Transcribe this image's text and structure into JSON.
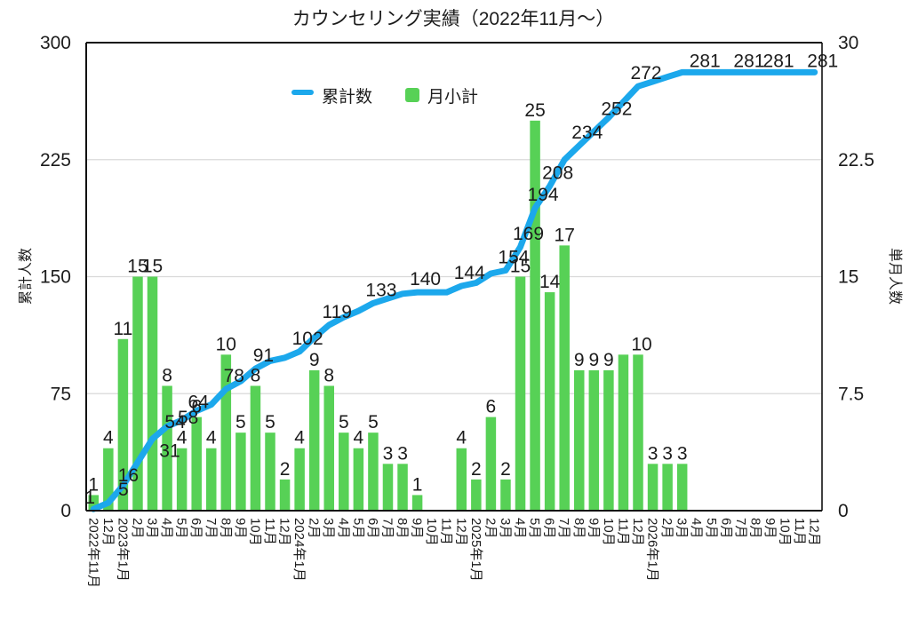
{
  "title": "カウンセリング実績（2022年11月〜）",
  "legend": {
    "line_label": "累計数",
    "bar_label": "月小計"
  },
  "colors": {
    "line": "#1ca8ec",
    "bar": "#57d156",
    "grid": "#d9d9d9",
    "axis": "#111111",
    "text": "#1c1c1c"
  },
  "chart_data": {
    "type": "combo-line-bar",
    "title": "カウンセリング実績（2022年11月〜）",
    "categories": [
      "2022年11月",
      "12月",
      "2023年1月",
      "2月",
      "3月",
      "4月",
      "5月",
      "6月",
      "7月",
      "8月",
      "9月",
      "10月",
      "11月",
      "12月",
      "2024年1月",
      "2月",
      "3月",
      "4月",
      "5月",
      "6月",
      "7月",
      "8月",
      "9月",
      "10月",
      "11月",
      "12月",
      "2025年1月",
      "2月",
      "3月",
      "4月",
      "5月",
      "6月",
      "7月",
      "8月",
      "9月",
      "10月",
      "11月",
      "12月",
      "2026年1月",
      "2月",
      "3月",
      "4月",
      "5月",
      "6月",
      "7月",
      "8月",
      "9月",
      "10月",
      "11月",
      "12月"
    ],
    "series": [
      {
        "name": "累計数",
        "type": "line",
        "axis": "left",
        "values": [
          1,
          5,
          16,
          31,
          46,
          54,
          58,
          64,
          68,
          78,
          83,
          91,
          96,
          98,
          102,
          111,
          119,
          124,
          128,
          133,
          136,
          139,
          140,
          140,
          140,
          144,
          146,
          152,
          154,
          169,
          194,
          208,
          225,
          234,
          243,
          252,
          262,
          272,
          275,
          278,
          281,
          281,
          281,
          281,
          281,
          281,
          281,
          281,
          281,
          281
        ]
      },
      {
        "name": "月小計",
        "type": "bar",
        "axis": "right",
        "values": [
          1,
          4,
          11,
          15,
          15,
          8,
          4,
          6,
          4,
          10,
          5,
          8,
          5,
          2,
          4,
          9,
          8,
          5,
          4,
          5,
          3,
          3,
          1,
          0,
          0,
          4,
          2,
          6,
          2,
          15,
          25,
          14,
          17,
          9,
          9,
          9,
          10,
          10,
          3,
          3,
          3,
          0,
          0,
          0,
          0,
          0,
          0,
          0,
          0,
          0
        ]
      }
    ],
    "left_axis": {
      "title": "累計人数",
      "min": 0,
      "max": 300,
      "ticks": [
        "0",
        "75",
        "150",
        "225",
        "300"
      ]
    },
    "right_axis": {
      "title": "単月人数",
      "min": 0,
      "max": 30,
      "ticks": [
        "0",
        "7.5",
        "15",
        "22.5",
        "30"
      ]
    },
    "grid": true,
    "legend_position": "top",
    "visible_line_label_indices": [
      0,
      1,
      2,
      3,
      5,
      6,
      7,
      9,
      11,
      14,
      16,
      19,
      22,
      25,
      28,
      29,
      30,
      31,
      33,
      35,
      37,
      41,
      44,
      46,
      49
    ],
    "hidden_bar_label_indices": [
      36
    ]
  }
}
